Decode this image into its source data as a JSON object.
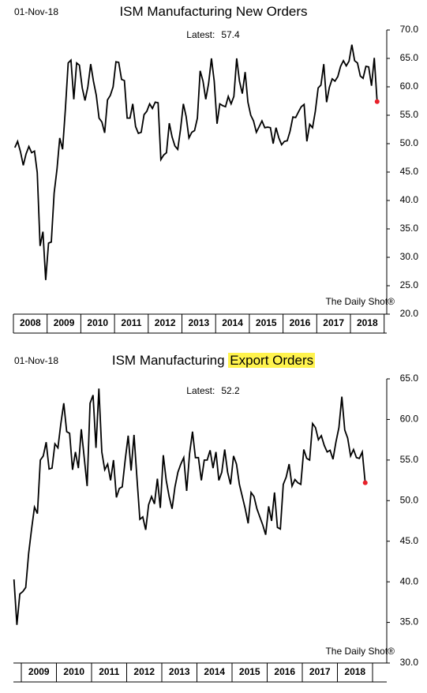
{
  "chart_data": [
    {
      "type": "line",
      "date": "01-Nov-18",
      "title": "ISM Manufacturing New Orders",
      "latest_label": "Latest:",
      "latest": 57.4,
      "source": "The Daily Shot®",
      "color": "#000000",
      "last_color": "#e8202a",
      "xticks": [
        "2008",
        "2009",
        "2010",
        "2011",
        "2012",
        "2013",
        "2014",
        "2015",
        "2016",
        "2017",
        "2018"
      ],
      "values": [
        49.3,
        50.4,
        48.6,
        46.2,
        48.2,
        49.5,
        48.4,
        48.7,
        44.9,
        32.0,
        34.5,
        26.0,
        32.5,
        32.7,
        41.3,
        45.5,
        51.0,
        49.0,
        56.0,
        64.2,
        64.7,
        57.8,
        64.2,
        63.8,
        59.8,
        57.6,
        60.0,
        64.0,
        61.0,
        58.5,
        54.5,
        53.8,
        51.9,
        57.7,
        58.5,
        60.0,
        64.4,
        64.3,
        61.3,
        61.1,
        54.5,
        54.5,
        57.0,
        53.0,
        51.8,
        52.0,
        55.1,
        55.7,
        57.0,
        56.2,
        57.3,
        57.2,
        47.2,
        48.0,
        48.4,
        53.6,
        51.2,
        49.6,
        49.0,
        52.5,
        57.0,
        54.8,
        51.0,
        52.0,
        52.3,
        54.5,
        62.8,
        61.0,
        57.8,
        60.6,
        65.0,
        61.0,
        53.5,
        57.0,
        56.7,
        56.5,
        58.3,
        57.0,
        58.3,
        65.0,
        61.0,
        58.8,
        62.6,
        57.3,
        55.0,
        54.0,
        52.0,
        53.0,
        54.0,
        52.8,
        52.9,
        52.8,
        50.0,
        52.8,
        51.0,
        49.8,
        50.4,
        50.5,
        52.2,
        54.7,
        54.6,
        55.6,
        56.5,
        56.9,
        50.4,
        53.4,
        52.8,
        55.7,
        59.8,
        60.3,
        64.0,
        57.3,
        59.9,
        61.4,
        61.0,
        61.8,
        63.6,
        64.6,
        63.7,
        64.5,
        67.4,
        64.6,
        64.2,
        61.9,
        61.5,
        63.6,
        63.5,
        60.2,
        65.1,
        57.4
      ],
      "ylim": [
        20,
        70
      ],
      "yticks": [
        {
          "value": 20,
          "label": "20.0"
        },
        {
          "value": 25,
          "label": "25.0"
        },
        {
          "value": 30,
          "label": "30.0"
        },
        {
          "value": 35,
          "label": "35.0"
        },
        {
          "value": 40,
          "label": "40.0"
        },
        {
          "value": 45,
          "label": "45.0"
        },
        {
          "value": 50,
          "label": "50.0"
        },
        {
          "value": 55,
          "label": "55.0"
        },
        {
          "value": 60,
          "label": "60.0"
        },
        {
          "value": 65,
          "label": "65.0"
        },
        {
          "value": 70,
          "label": "70.0"
        }
      ]
    },
    {
      "type": "line",
      "date": "01-Nov-18",
      "title": "ISM Manufacturing",
      "title_highlight": "Export Orders",
      "latest_label": "Latest:",
      "latest": 52.2,
      "source": "The Daily Shot®",
      "color": "#000000",
      "last_color": "#e8202a",
      "highlight_color": "#fff34d",
      "xticks": [
        "2009",
        "2010",
        "2011",
        "2012",
        "2013",
        "2014",
        "2015",
        "2016",
        "2017",
        "2018"
      ],
      "values": [
        40.3,
        34.7,
        38.5,
        38.8,
        39.3,
        43.5,
        46.5,
        49.2,
        48.4,
        55.0,
        55.5,
        57.2,
        53.9,
        54.0,
        57.0,
        56.5,
        59.5,
        62.0,
        58.5,
        58.3,
        53.8,
        56.0,
        54.0,
        58.8,
        55.3,
        51.8,
        62.0,
        63.0,
        56.5,
        63.8,
        56.0,
        53.8,
        54.5,
        52.5,
        55.0,
        50.4,
        51.5,
        51.7,
        55.0,
        58.0,
        53.7,
        58.1,
        52.8,
        47.7,
        48.0,
        46.4,
        49.5,
        50.5,
        49.6,
        52.7,
        49.1,
        55.6,
        52.5,
        50.5,
        49.0,
        51.7,
        53.5,
        54.5,
        55.3,
        51.2,
        55.8,
        58.5,
        55.3,
        55.3,
        52.5,
        55.0,
        55.0,
        56.2,
        54.0,
        56.0,
        52.5,
        53.5,
        56.3,
        53.5,
        52.0,
        55.5,
        54.5,
        52.0,
        50.5,
        49.0,
        47.2,
        51.0,
        50.5,
        49.0,
        48.0,
        47.0,
        45.8,
        49.3,
        47.5,
        51.0,
        46.7,
        46.5,
        52.0,
        52.9,
        54.5,
        51.8,
        52.6,
        52.2,
        52.0,
        56.3,
        55.2,
        55.0,
        59.5,
        59.0,
        57.5,
        58.0,
        56.8,
        56.0,
        56.2,
        55.1,
        57.2,
        59.0,
        62.8,
        58.7,
        57.7,
        55.5,
        56.3,
        55.3,
        55.2,
        56.0,
        52.2
      ],
      "ylim": [
        30,
        65
      ],
      "yticks": [
        {
          "value": 30,
          "label": "30.0"
        },
        {
          "value": 35,
          "label": "35.0"
        },
        {
          "value": 40,
          "label": "40.0"
        },
        {
          "value": 45,
          "label": "45.0"
        },
        {
          "value": 50,
          "label": "50.0"
        },
        {
          "value": 55,
          "label": "55.0"
        },
        {
          "value": 60,
          "label": "60.0"
        },
        {
          "value": 65,
          "label": "65.0"
        }
      ]
    }
  ]
}
